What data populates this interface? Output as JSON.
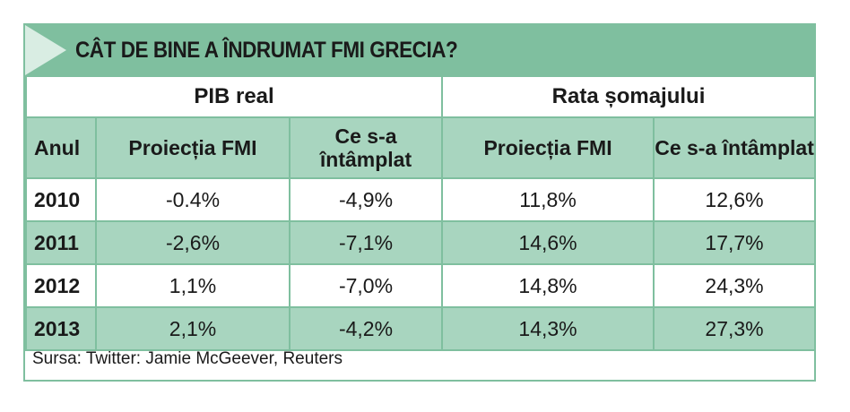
{
  "title": "CÂT DE BINE A ÎNDRUMAT FMI GRECIA?",
  "groups": {
    "gdp": "PIB real",
    "unemployment": "Rata șomajului"
  },
  "columns": {
    "year": "Anul",
    "gdp_forecast": "Proiecția FMI",
    "gdp_actual": "Ce s-a întâmplat",
    "unemp_forecast": "Proiecția FMI",
    "unemp_actual": "Ce s-a întâmplat"
  },
  "rows": [
    {
      "year": "2010",
      "gdp_forecast": "-0.4%",
      "gdp_actual": "-4,9%",
      "unemp_forecast": "11,8%",
      "unemp_actual": "12,6%"
    },
    {
      "year": "2011",
      "gdp_forecast": "-2,6%",
      "gdp_actual": "-7,1%",
      "unemp_forecast": "14,6%",
      "unemp_actual": "17,7%"
    },
    {
      "year": "2012",
      "gdp_forecast": "1,1%",
      "gdp_actual": "-7,0%",
      "unemp_forecast": "14,8%",
      "unemp_actual": "24,3%"
    },
    {
      "year": "2013",
      "gdp_forecast": "2,1%",
      "gdp_actual": "-4,2%",
      "unemp_forecast": "14,3%",
      "unemp_actual": "27,3%"
    }
  ],
  "source": "Sursa: Twitter: Jamie McGeever, Reuters",
  "colors": {
    "header_green": "#7fbf9f",
    "row_green": "#a8d5bf",
    "arrow_light": "#d9ede3"
  }
}
